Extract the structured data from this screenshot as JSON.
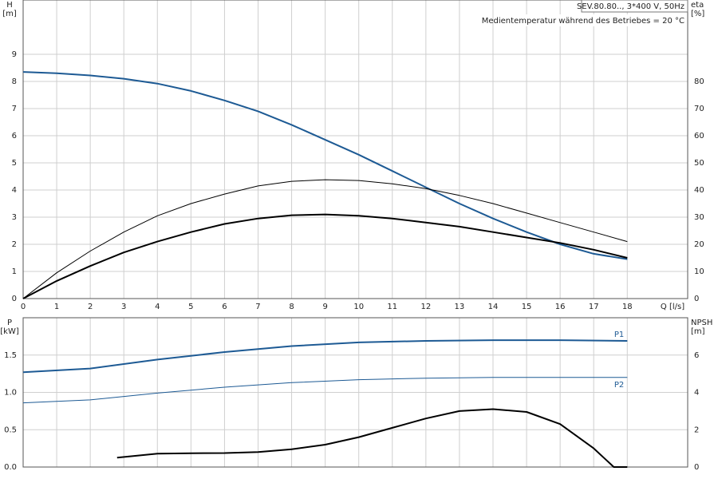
{
  "chart_data": [
    {
      "type": "line",
      "note_box": "SEV.80.80.., 3*400 V, 50Hz",
      "annotation": "Medientemperatur während des Betriebes = 20 °C",
      "y_label": "H",
      "y_unit": "[m]",
      "y2_label": "eta",
      "y2_unit": "[%]",
      "x_label": "Q [l/s]",
      "xlim": [
        0,
        19.8
      ],
      "xticks": [
        0,
        1,
        2,
        3,
        4,
        5,
        6,
        7,
        8,
        9,
        10,
        11,
        12,
        13,
        14,
        15,
        16,
        17,
        18
      ],
      "ylim": [
        0,
        11
      ],
      "yticks": [
        0,
        1,
        2,
        3,
        4,
        5,
        6,
        7,
        8,
        9
      ],
      "y2lim": [
        0,
        110
      ],
      "y2ticks": [
        0,
        10,
        20,
        30,
        40,
        50,
        60,
        70,
        80
      ],
      "grid": true,
      "series": [
        {
          "color": "#1d5a94",
          "width": 2,
          "x": [
            0,
            1,
            2,
            3,
            4,
            5,
            6,
            7,
            8,
            9,
            10,
            11,
            12,
            13,
            14,
            15,
            16,
            17,
            18
          ],
          "values": [
            8.35,
            8.3,
            8.22,
            8.1,
            7.92,
            7.65,
            7.3,
            6.9,
            6.4,
            5.85,
            5.3,
            4.7,
            4.1,
            3.5,
            2.95,
            2.45,
            2.0,
            1.65,
            1.45
          ]
        },
        {
          "color": "#000000",
          "width": 1,
          "axis": "y2",
          "x": [
            0,
            1,
            2,
            3,
            4,
            5,
            6,
            7,
            8,
            9,
            10,
            11,
            12,
            13,
            14,
            15,
            16,
            17,
            18
          ],
          "values": [
            0,
            9.5,
            17.5,
            24.5,
            30.5,
            35,
            38.5,
            41.5,
            43.2,
            43.8,
            43.5,
            42.3,
            40.5,
            38,
            35,
            31.5,
            28,
            24.5,
            21
          ]
        },
        {
          "color": "#000000",
          "width": 2,
          "axis": "y2",
          "x": [
            0,
            1,
            2,
            3,
            4,
            5,
            6,
            7,
            8,
            9,
            10,
            11,
            12,
            13,
            14,
            15,
            16,
            17,
            18
          ],
          "values": [
            0,
            6.5,
            12,
            17,
            21,
            24.5,
            27.5,
            29.5,
            30.7,
            31,
            30.5,
            29.5,
            28,
            26.5,
            24.5,
            22.5,
            20.5,
            18,
            15
          ]
        }
      ]
    },
    {
      "type": "line",
      "y_label": "P",
      "y_unit": "[kW]",
      "y2_label": "NPSH",
      "y2_unit": "[m]",
      "xlim": [
        0,
        19.8
      ],
      "xticks": [
        0,
        1,
        2,
        3,
        4,
        5,
        6,
        7,
        8,
        9,
        10,
        11,
        12,
        13,
        14,
        15,
        16,
        17,
        18
      ],
      "ylim": [
        0,
        2
      ],
      "yticks": [
        {
          "value": 0,
          "label": "0.0"
        },
        0.5,
        {
          "value": 1,
          "label": "1.0"
        },
        1.5
      ],
      "y2lim": [
        0,
        8
      ],
      "y2ticks": [
        0,
        2,
        4,
        6
      ],
      "grid": true,
      "series": [
        {
          "name": "P1",
          "color": "#1d5a94",
          "width": 2,
          "x": [
            0,
            2,
            4,
            6,
            8,
            10,
            12,
            14,
            16,
            18
          ],
          "values": [
            1.27,
            1.32,
            1.44,
            1.54,
            1.62,
            1.67,
            1.69,
            1.7,
            1.7,
            1.69
          ]
        },
        {
          "name": "P2",
          "color": "#1d5a94",
          "width": 1,
          "x": [
            0,
            2,
            4,
            6,
            8,
            10,
            12,
            14,
            16,
            18
          ],
          "values": [
            0.86,
            0.9,
            0.99,
            1.07,
            1.13,
            1.17,
            1.19,
            1.2,
            1.2,
            1.2
          ]
        },
        {
          "color": "#000000",
          "width": 2,
          "axis": "y2",
          "x": [
            2.8,
            4,
            5,
            6,
            7,
            8,
            9,
            10,
            11,
            12,
            13,
            14,
            15,
            16,
            17,
            17.6,
            18
          ],
          "values": [
            0.5,
            0.72,
            0.74,
            0.75,
            0.8,
            0.95,
            1.2,
            1.6,
            2.1,
            2.6,
            3.0,
            3.1,
            2.95,
            2.3,
            1.0,
            0,
            0
          ]
        }
      ]
    }
  ]
}
